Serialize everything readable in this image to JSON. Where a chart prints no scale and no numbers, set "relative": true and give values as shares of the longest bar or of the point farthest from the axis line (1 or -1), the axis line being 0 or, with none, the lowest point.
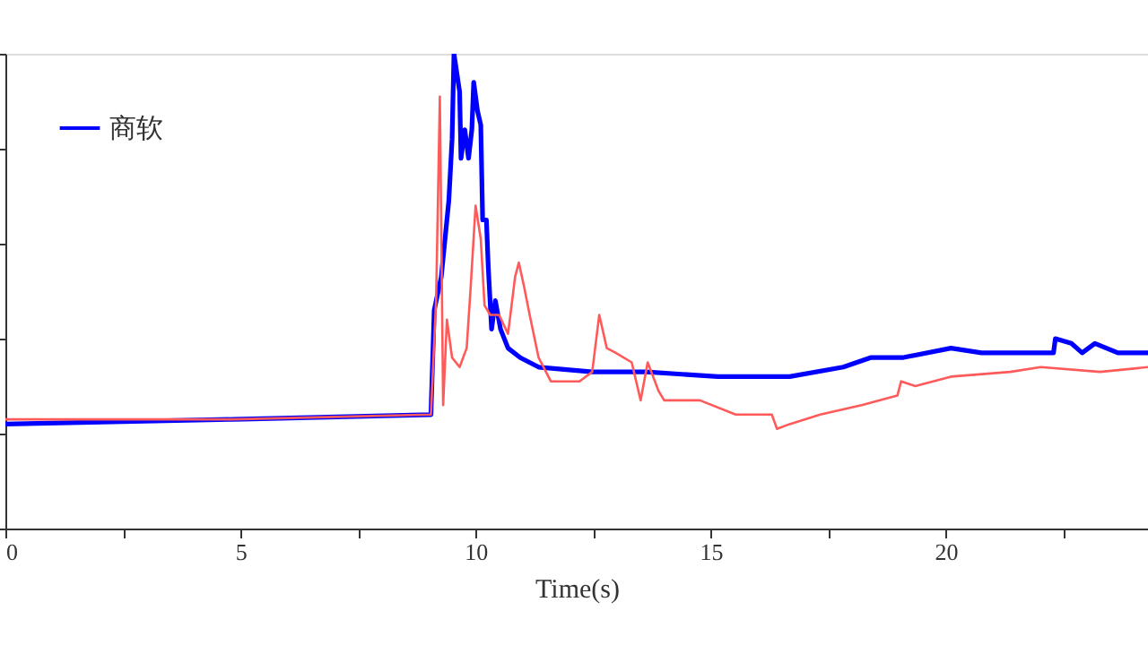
{
  "chart_data": {
    "type": "line",
    "xlabel": "Time(s)",
    "relative": true,
    "xlim": [
      0,
      24.3
    ],
    "xticks": [
      0,
      {
        "value": 2.5,
        "label": null
      },
      5,
      {
        "value": 7.5,
        "label": null
      },
      10,
      {
        "value": 12.5,
        "label": null
      },
      15,
      {
        "value": 17.5,
        "label": null
      },
      20,
      {
        "value": 22.5,
        "label": null
      }
    ],
    "tick_labels": "x",
    "legend": "top left",
    "grid": false,
    "marker": "none",
    "line_style": "solid",
    "series": [
      {
        "name": "商软",
        "color": "#0000ff",
        "x": [
          0,
          4.85,
          9.05,
          9.12,
          9.27,
          9.43,
          9.5,
          9.54,
          9.66,
          9.69,
          9.77,
          9.85,
          9.92,
          9.96,
          10.04,
          10.11,
          10.15,
          10.23,
          10.27,
          10.34,
          10.42,
          10.53,
          10.69,
          10.95,
          11.34,
          12.48,
          13.63,
          15.15,
          16.68,
          17.82,
          18.4,
          19.08,
          20.11,
          20.76,
          22.29,
          22.33,
          22.67,
          22.9,
          23.17,
          23.66,
          24.3
        ],
        "values": [
          0.22,
          0.23,
          0.24,
          0.46,
          0.53,
          0.69,
          0.82,
          1.0,
          0.92,
          0.78,
          0.84,
          0.78,
          0.84,
          0.94,
          0.88,
          0.85,
          0.65,
          0.65,
          0.55,
          0.42,
          0.48,
          0.42,
          0.38,
          0.36,
          0.34,
          0.33,
          0.33,
          0.32,
          0.32,
          0.34,
          0.36,
          0.36,
          0.38,
          0.37,
          0.37,
          0.4,
          0.39,
          0.37,
          0.39,
          0.37,
          0.37
        ]
      },
      {
        "color": "#ff5a5a",
        "x": [
          0,
          4.85,
          9.05,
          9.16,
          9.24,
          9.31,
          9.39,
          9.5,
          9.66,
          9.81,
          9.89,
          10.0,
          10.11,
          10.19,
          10.31,
          10.5,
          10.69,
          10.84,
          10.92,
          11.03,
          11.15,
          11.34,
          11.6,
          12.21,
          12.48,
          12.63,
          12.79,
          12.98,
          13.32,
          13.51,
          13.66,
          13.89,
          14.01,
          14.77,
          15.53,
          16.3,
          16.41,
          16.68,
          17.33,
          18.21,
          18.97,
          19.05,
          19.35,
          20.11,
          21.37,
          22.02,
          23.28,
          24.3
        ],
        "values": [
          0.23,
          0.23,
          0.24,
          0.48,
          0.91,
          0.26,
          0.44,
          0.36,
          0.34,
          0.38,
          0.5,
          0.68,
          0.61,
          0.47,
          0.45,
          0.45,
          0.41,
          0.53,
          0.56,
          0.51,
          0.45,
          0.36,
          0.31,
          0.31,
          0.33,
          0.45,
          0.38,
          0.37,
          0.35,
          0.27,
          0.35,
          0.29,
          0.27,
          0.27,
          0.24,
          0.24,
          0.21,
          0.22,
          0.24,
          0.26,
          0.28,
          0.31,
          0.3,
          0.32,
          0.33,
          0.34,
          0.33,
          0.34
        ]
      }
    ]
  }
}
